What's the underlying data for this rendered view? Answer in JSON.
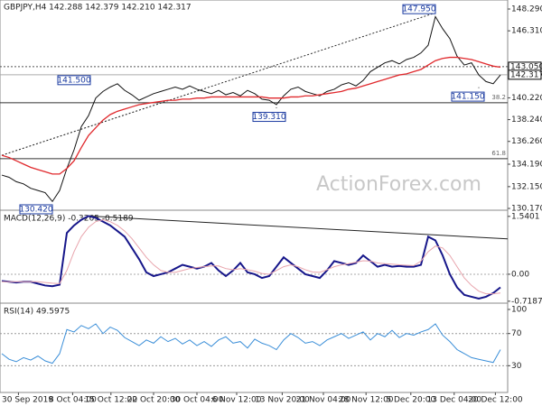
{
  "chart_data": [
    {
      "type": "line",
      "title": "GBPJPY,H4  142.288 142.379 142.210 142.317",
      "watermark": "ActionForex.com",
      "xlim": [
        0,
        70
      ],
      "ylim": [
        130.09,
        149.11
      ],
      "yticks": [
        {
          "value": 148.29,
          "label": "148.290"
        },
        {
          "value": 146.31,
          "label": "146.310"
        },
        {
          "value": 140.22,
          "label": "140.220"
        },
        {
          "value": 138.24,
          "label": "138.240"
        },
        {
          "value": 136.26,
          "label": "136.260"
        },
        {
          "value": 134.19,
          "label": "134.190"
        },
        {
          "value": 132.15,
          "label": "132.150"
        },
        {
          "value": 130.17,
          "label": "130.170"
        }
      ],
      "series": [
        {
          "name": "GBPJPY",
          "color": "#111111",
          "values": [
            133.2,
            133.0,
            132.6,
            132.4,
            132.0,
            131.8,
            131.6,
            130.8,
            131.8,
            133.8,
            135.5,
            137.6,
            138.6,
            140.2,
            140.8,
            141.2,
            141.5,
            140.9,
            140.5,
            140.0,
            140.3,
            140.6,
            140.8,
            141.0,
            141.2,
            141.0,
            141.3,
            141.0,
            140.8,
            140.6,
            140.9,
            140.5,
            140.7,
            140.4,
            140.9,
            140.6,
            140.1,
            140.0,
            139.6,
            140.4,
            141.0,
            141.2,
            140.8,
            140.6,
            140.4,
            140.8,
            141.0,
            141.4,
            141.6,
            141.3,
            141.8,
            142.6,
            143.0,
            143.4,
            143.6,
            143.3,
            143.7,
            143.9,
            144.3,
            145.0,
            147.6,
            146.5,
            145.6,
            144.0,
            143.2,
            143.4,
            142.3,
            141.7,
            141.5,
            142.3
          ]
        },
        {
          "name": "MA",
          "color": "#e0282c",
          "values": [
            135.0,
            134.8,
            134.5,
            134.2,
            133.9,
            133.7,
            133.5,
            133.3,
            133.3,
            133.8,
            134.5,
            135.7,
            136.8,
            137.5,
            138.2,
            138.7,
            139.0,
            139.2,
            139.4,
            139.6,
            139.7,
            139.8,
            139.9,
            140.0,
            140.0,
            140.1,
            140.1,
            140.2,
            140.2,
            140.3,
            140.3,
            140.3,
            140.3,
            140.3,
            140.3,
            140.3,
            140.3,
            140.2,
            140.2,
            140.2,
            140.3,
            140.3,
            140.4,
            140.4,
            140.5,
            140.6,
            140.7,
            140.8,
            141.0,
            141.1,
            141.3,
            141.5,
            141.7,
            141.9,
            142.1,
            142.3,
            142.4,
            142.6,
            142.8,
            143.2,
            143.6,
            143.8,
            143.9,
            143.9,
            143.8,
            143.7,
            143.5,
            143.3,
            143.1,
            143.0
          ]
        }
      ],
      "price_labels": [
        {
          "value": 147.95,
          "label": "147.950",
          "x": 60
        },
        {
          "value": 141.5,
          "label": "141.500",
          "x": 12
        },
        {
          "value": 139.31,
          "label": "139.310",
          "x": 38
        },
        {
          "value": 141.15,
          "label": "141.150",
          "x": 66
        },
        {
          "value": 130.42,
          "label": "130.420",
          "x": 7
        }
      ],
      "levels": [
        {
          "value": 143.05,
          "label": "143.050",
          "color": "#555555"
        },
        {
          "value": 142.317,
          "label": "142.317",
          "color": "#aaaaaa"
        }
      ],
      "fib": [
        {
          "level": 38.2,
          "price": 139.77
        },
        {
          "level": 61.8,
          "price": 134.69
        }
      ],
      "trendline": {
        "x": [
          0,
          60
        ],
        "y": [
          135.0,
          147.95
        ]
      }
    },
    {
      "type": "line",
      "title": "MACD(12,26,9) -0.3265 -0.5189",
      "xlim": [
        0,
        70
      ],
      "ylim": [
        -0.77,
        1.68
      ],
      "yticks": [
        1.5401,
        {
          "value": 0,
          "label": "0.00"
        },
        -0.7187
      ],
      "series": [
        {
          "name": "MACD",
          "color": "#16168a",
          "values": [
            -0.18,
            -0.2,
            -0.22,
            -0.2,
            -0.2,
            -0.25,
            -0.3,
            -0.32,
            -0.28,
            1.1,
            1.3,
            1.45,
            1.55,
            1.5,
            1.4,
            1.3,
            1.15,
            1.0,
            0.7,
            0.4,
            0.05,
            -0.05,
            0.0,
            0.05,
            0.15,
            0.25,
            0.2,
            0.15,
            0.2,
            0.3,
            0.1,
            -0.05,
            0.1,
            0.3,
            0.05,
            0.0,
            -0.1,
            -0.05,
            0.2,
            0.45,
            0.3,
            0.15,
            0.0,
            -0.05,
            -0.1,
            0.1,
            0.35,
            0.3,
            0.25,
            0.3,
            0.5,
            0.35,
            0.2,
            0.25,
            0.2,
            0.22,
            0.2,
            0.2,
            0.25,
            1.0,
            0.9,
            0.5,
            0.0,
            -0.35,
            -0.55,
            -0.6,
            -0.65,
            -0.6,
            -0.5,
            -0.35
          ]
        },
        {
          "name": "Signal",
          "color": "#e8a4ac",
          "values": [
            -0.2,
            -0.2,
            -0.2,
            -0.2,
            -0.2,
            -0.2,
            -0.22,
            -0.24,
            -0.25,
            0.1,
            0.6,
            1.0,
            1.25,
            1.4,
            1.45,
            1.4,
            1.3,
            1.15,
            0.95,
            0.7,
            0.45,
            0.25,
            0.1,
            0.05,
            0.05,
            0.1,
            0.15,
            0.18,
            0.2,
            0.22,
            0.22,
            0.15,
            0.12,
            0.15,
            0.12,
            0.08,
            0.02,
            0.0,
            0.1,
            0.2,
            0.25,
            0.2,
            0.12,
            0.06,
            0.05,
            0.12,
            0.2,
            0.25,
            0.28,
            0.32,
            0.36,
            0.35,
            0.3,
            0.28,
            0.27,
            0.25,
            0.24,
            0.23,
            0.35,
            0.6,
            0.75,
            0.7,
            0.5,
            0.2,
            -0.1,
            -0.3,
            -0.45,
            -0.52,
            -0.52,
            -0.5
          ]
        }
      ],
      "zero_line": 0,
      "trendline": {
        "x": [
          12,
          70
        ],
        "y": [
          1.55,
          0.94
        ]
      }
    },
    {
      "type": "line",
      "title": "RSI(14) 49.5975",
      "xlim": [
        0,
        70
      ],
      "ylim": [
        -3.3,
        106.7
      ],
      "yticks": [
        100,
        70,
        30
      ],
      "series": [
        {
          "name": "RSI",
          "color": "#3a8ed8",
          "values": [
            45,
            38,
            35,
            40,
            37,
            42,
            36,
            33,
            45,
            75,
            72,
            80,
            76,
            82,
            70,
            78,
            74,
            65,
            60,
            55,
            62,
            58,
            66,
            60,
            64,
            57,
            62,
            55,
            60,
            54,
            62,
            66,
            58,
            60,
            52,
            63,
            58,
            55,
            50,
            62,
            70,
            65,
            58,
            60,
            55,
            62,
            66,
            70,
            64,
            68,
            72,
            62,
            70,
            66,
            74,
            65,
            70,
            68,
            72,
            75,
            82,
            68,
            60,
            50,
            45,
            40,
            38,
            36,
            34,
            50
          ]
        }
      ],
      "levels": [
        70,
        30
      ],
      "xticks": [
        {
          "value": 2.3,
          "label": "30 Sep 2019"
        },
        {
          "value": 9.8,
          "label": "8 Oct 04:00"
        },
        {
          "value": 15.1,
          "label": "15 Oct 12:00"
        },
        {
          "value": 21,
          "label": "22 Oct 20:00"
        },
        {
          "value": 27,
          "label": "30 Oct 04:00"
        },
        {
          "value": 32.5,
          "label": "6 Nov 12:00"
        },
        {
          "value": 38.8,
          "label": "13 Nov 20:00"
        },
        {
          "value": 44.5,
          "label": "21 Nov 04:00"
        },
        {
          "value": 50.4,
          "label": "28 Nov 12:00"
        },
        {
          "value": 56.6,
          "label": "5 Dec 20:00"
        },
        {
          "value": 62.6,
          "label": "13 Dec 04:00"
        },
        {
          "value": 68.3,
          "label": "20 Dec 12:00"
        }
      ]
    }
  ]
}
